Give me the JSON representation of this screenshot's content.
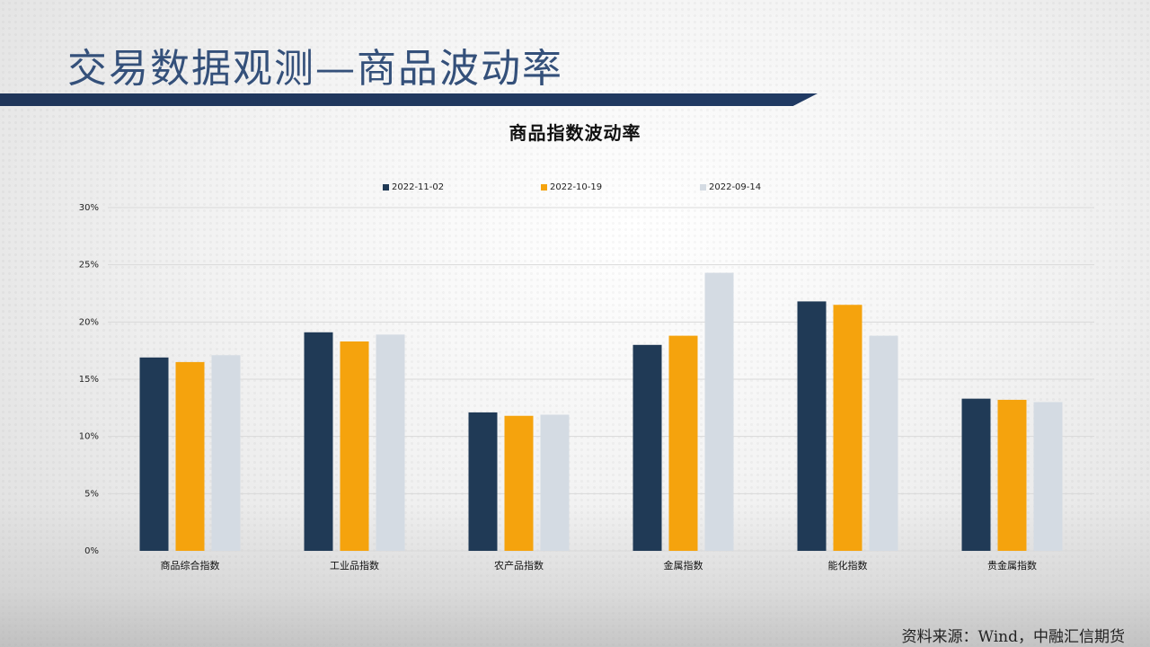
{
  "page": {
    "title": "交易数据观测—商品波动率",
    "source": "资料来源：Wind，中融汇信期货"
  },
  "colors": {
    "title": "#34507a",
    "title_bar": "#1f3559",
    "series": [
      "#203a56",
      "#f5a30d",
      "#d4dbe3"
    ],
    "grid": "#d9d9d9"
  },
  "chart_data": {
    "type": "bar",
    "title": "商品指数波动率",
    "xlabel": "",
    "ylabel": "",
    "categories": [
      "商品综合指数",
      "工业品指数",
      "农产品指数",
      "金属指数",
      "能化指数",
      "贵金属指数"
    ],
    "series": [
      {
        "name": "2022-11-02",
        "values": [
          16.9,
          19.1,
          12.1,
          18.0,
          21.8,
          13.3
        ]
      },
      {
        "name": "2022-10-19",
        "values": [
          16.5,
          18.3,
          11.8,
          18.8,
          21.5,
          13.2
        ]
      },
      {
        "name": "2022-09-14",
        "values": [
          17.1,
          18.9,
          11.9,
          24.3,
          18.8,
          13.0
        ]
      }
    ],
    "ylim": [
      0,
      30
    ],
    "yticks": [
      "0%",
      "5%",
      "10%",
      "15%",
      "20%",
      "25%",
      "30%"
    ],
    "ytick_values": [
      0,
      5,
      10,
      15,
      20,
      25,
      30
    ],
    "grid": true,
    "legend": "top-center"
  }
}
